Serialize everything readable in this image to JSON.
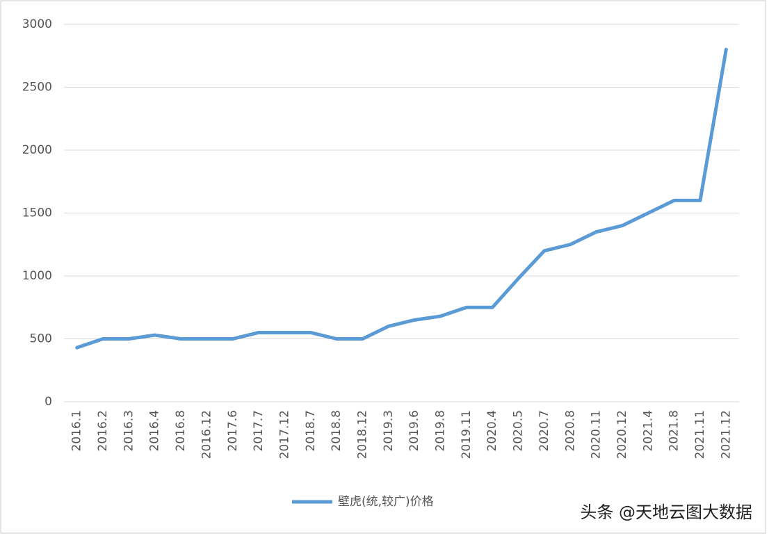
{
  "chart_data": {
    "type": "line",
    "categories": [
      "2016.1",
      "2016.2",
      "2016.3",
      "2016.4",
      "2016.8",
      "2016.12",
      "2017.6",
      "2017.7",
      "2017.12",
      "2018.7",
      "2018.8",
      "2018.12",
      "2019.3",
      "2019.6",
      "2019.8",
      "2019.11",
      "2020.4",
      "2020.5",
      "2020.7",
      "2020.8",
      "2020.11",
      "2020.12",
      "2021.4",
      "2021.8",
      "2021.11",
      "2021.12"
    ],
    "series": [
      {
        "name": "壁虎(统,较广)价格",
        "color": "#5b9bd5",
        "values": [
          430,
          500,
          500,
          530,
          500,
          500,
          500,
          550,
          550,
          550,
          500,
          500,
          600,
          650,
          680,
          750,
          750,
          980,
          1200,
          1250,
          1350,
          1400,
          1500,
          1600,
          1600,
          2800
        ]
      }
    ],
    "ylim": [
      0,
      3000
    ],
    "yticks": [
      0,
      500,
      1000,
      1500,
      2000,
      2500,
      3000
    ],
    "grid": true,
    "legend": "bottom",
    "watermark": "头条 @天地云图大数据"
  }
}
